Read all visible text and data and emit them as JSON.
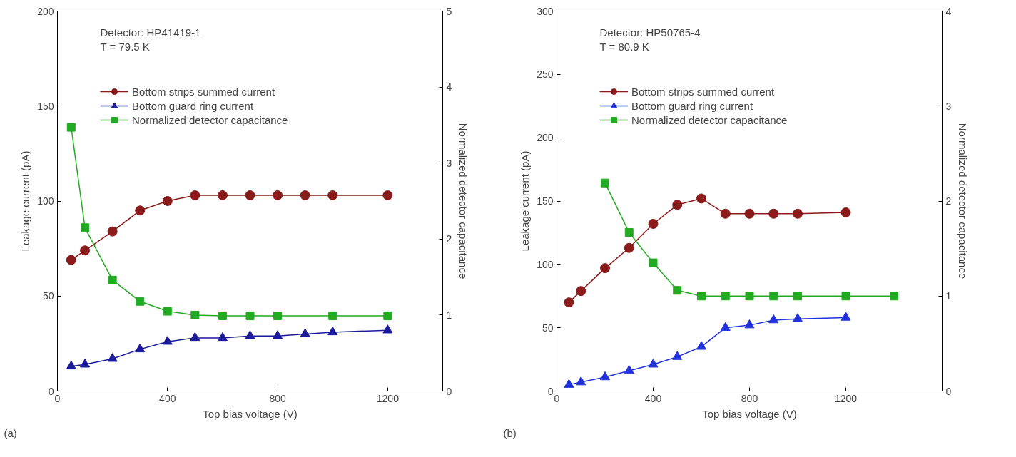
{
  "chart_data": [
    {
      "type": "line",
      "xlabel": "Top bias voltage (V)",
      "ylabel": "Leakage current (pA)",
      "y2label": "Normalized detector capacitance",
      "xlim": [
        0,
        1400
      ],
      "xticks": [
        0,
        400,
        800,
        1200
      ],
      "ylim": [
        0,
        200
      ],
      "yticks": [
        0,
        50,
        100,
        150,
        200
      ],
      "y2lim": [
        0,
        5
      ],
      "y2ticks": [
        0,
        1,
        2,
        3,
        4,
        5
      ],
      "grid": false,
      "legend": "top left",
      "annotations": [
        "Detector: HP41419-1",
        "T = 79.5 K",
        "(a)"
      ],
      "series": [
        {
          "name": "Bottom strips summed current",
          "color": "#8b1a1a",
          "marker": "circle",
          "x": [
            50,
            100,
            200,
            300,
            400,
            500,
            600,
            700,
            800,
            900,
            1000,
            1200
          ],
          "values": [
            69,
            74,
            84,
            95,
            100,
            103,
            103,
            103,
            103,
            103,
            103,
            103
          ]
        },
        {
          "name": "Bottom guard ring current",
          "color": "#1a1a9b",
          "marker": "triangle",
          "x": [
            50,
            100,
            200,
            300,
            400,
            500,
            600,
            700,
            800,
            900,
            1000,
            1200
          ],
          "values": [
            13,
            14,
            17,
            22,
            26,
            28,
            28,
            29,
            29,
            30,
            31,
            32
          ]
        },
        {
          "name": "Normalized detector capacitance",
          "color": "#22aa22",
          "marker": "square",
          "axis": "y2",
          "x": [
            50,
            100,
            200,
            300,
            400,
            500,
            600,
            700,
            800,
            1000,
            1200
          ],
          "values": [
            3.47,
            2.15,
            1.46,
            1.18,
            1.05,
            1.0,
            0.99,
            0.99,
            0.99,
            0.99,
            0.99
          ]
        }
      ]
    },
    {
      "type": "line",
      "xlabel": "Top bias voltage (V)",
      "ylabel": "Leakage current (pA)",
      "y2label": "Normalized detector capacitance",
      "xlim": [
        0,
        1600
      ],
      "xticks": [
        0,
        400,
        800,
        1200
      ],
      "ylim": [
        0,
        300
      ],
      "yticks": [
        0,
        50,
        100,
        150,
        200,
        250,
        300
      ],
      "y2lim": [
        0,
        4
      ],
      "y2ticks": [
        0,
        1,
        2,
        3,
        4
      ],
      "grid": false,
      "legend": "top left",
      "annotations": [
        "Detector: HP50765-4",
        "T = 80.9 K",
        "(b)"
      ],
      "series": [
        {
          "name": "Bottom strips summed current",
          "color": "#8b1a1a",
          "marker": "circle",
          "x": [
            50,
            100,
            200,
            300,
            400,
            500,
            600,
            700,
            800,
            900,
            1000,
            1200
          ],
          "values": [
            70,
            79,
            97,
            113,
            132,
            147,
            152,
            140,
            140,
            140,
            140,
            141
          ]
        },
        {
          "name": "Bottom guard ring current",
          "color": "#2233dd",
          "marker": "triangle",
          "x": [
            50,
            100,
            200,
            300,
            400,
            500,
            600,
            700,
            800,
            900,
            1000,
            1200
          ],
          "values": [
            5,
            7,
            11,
            16,
            21,
            27,
            35,
            50,
            52,
            56,
            57,
            58
          ]
        },
        {
          "name": "Normalized detector capacitance",
          "color": "#22aa22",
          "marker": "square",
          "axis": "y2",
          "x": [
            200,
            300,
            400,
            500,
            600,
            700,
            800,
            900,
            1000,
            1200,
            1400
          ],
          "values": [
            2.19,
            1.67,
            1.35,
            1.06,
            1.0,
            1.0,
            1.0,
            1.0,
            1.0,
            1.0,
            1.0
          ]
        }
      ]
    }
  ]
}
